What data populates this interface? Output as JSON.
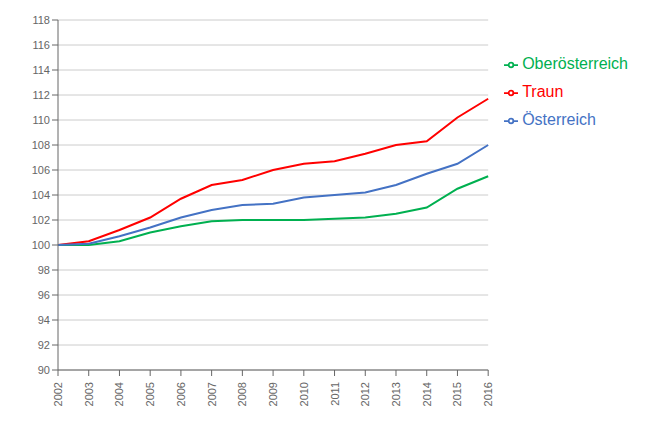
{
  "chart_data": {
    "type": "line",
    "categories": [
      "2002",
      "2003",
      "2004",
      "2005",
      "2006",
      "2007",
      "2008",
      "2009",
      "2010",
      "2011",
      "2012",
      "2013",
      "2014",
      "2015",
      "2016"
    ],
    "series": [
      {
        "name": "Traun",
        "color": "#FF0000",
        "values": [
          100.0,
          100.3,
          101.2,
          102.2,
          103.7,
          104.8,
          105.2,
          106.0,
          106.5,
          106.7,
          107.3,
          108.0,
          108.3,
          110.2,
          111.7
        ]
      },
      {
        "name": "Oberösterreich",
        "color": "#00B050",
        "values": [
          100.0,
          100.0,
          100.3,
          101.0,
          101.5,
          101.9,
          102.0,
          102.0,
          102.0,
          102.1,
          102.2,
          102.5,
          103.0,
          104.5,
          105.5
        ]
      },
      {
        "name": "Österreich",
        "color": "#4472C4",
        "values": [
          100.0,
          100.1,
          100.7,
          101.4,
          102.2,
          102.8,
          103.2,
          103.3,
          103.8,
          104.0,
          104.2,
          104.8,
          105.7,
          106.5,
          108.0
        ]
      }
    ],
    "ylim": [
      90,
      118
    ],
    "yticks": [
      90,
      92,
      94,
      96,
      98,
      100,
      102,
      104,
      106,
      108,
      110,
      112,
      114,
      116,
      118
    ],
    "grid": true,
    "legend": "right"
  }
}
